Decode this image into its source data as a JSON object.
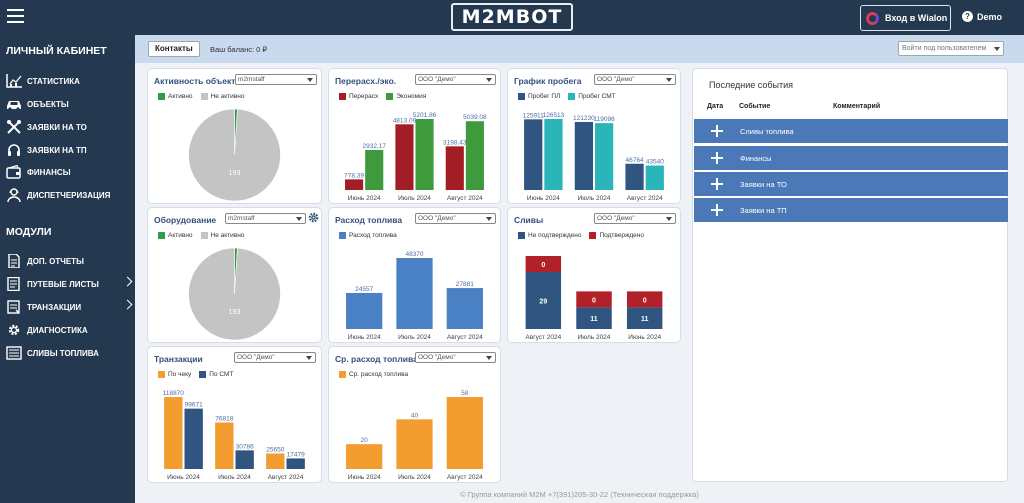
{
  "header": {
    "logo": "M2MBOT",
    "wialon_label": "Вход в Wialon",
    "user": "Demo"
  },
  "sidebar": {
    "cabinet_title": "ЛИЧНЫЙ КАБИНЕТ",
    "cabinet_items": [
      {
        "label": "СТАТИСТИКА"
      },
      {
        "label": "ОБЪЕКТЫ"
      },
      {
        "label": "ЗАЯВКИ НА ТО"
      },
      {
        "label": "ЗАЯВКИ НА ТП"
      },
      {
        "label": "ФИНАНСЫ"
      },
      {
        "label": "ДИСПЕТЧЕРИЗАЦИЯ"
      }
    ],
    "modules_title": "МОДУЛИ",
    "module_items": [
      {
        "label": "ДОП. ОТЧЕТЫ"
      },
      {
        "label": "ПУТЕВЫЕ ЛИСТЫ"
      },
      {
        "label": "ТРАНЗАКЦИИ"
      },
      {
        "label": "ДИАГНОСТИКА"
      },
      {
        "label": "СЛИВЫ ТОПЛИВА"
      }
    ]
  },
  "infobar": {
    "contacts_label": "Контакты",
    "balance": "Ваш баланс: 0 ₽",
    "login_as_placeholder": "Войти под пользователем"
  },
  "colors": {
    "active": "#2e9e4a",
    "inactive": "#c4c4c4",
    "overspend": "#a31d24",
    "economy": "#3e9a3d",
    "dark_blue": "#2f5580",
    "teal": "#2ab5b8",
    "fuel_blue": "#4a80c4",
    "orange": "#f39c2f",
    "red": "#b0212a"
  },
  "chart_data": [
    {
      "id": "activity",
      "type": "pie",
      "title": "Активность объекто",
      "select": "m2mstaff",
      "legend": [
        "Активно",
        "Не активно"
      ],
      "values": [
        2,
        193
      ],
      "labels": [
        "",
        "193"
      ]
    },
    {
      "id": "overspend",
      "type": "bar",
      "title": "Перерасх./эко.",
      "select": "ООО \"Демо\"",
      "categories": [
        "Июнь 2024",
        "Июль 2024",
        "Август 2024"
      ],
      "series": [
        {
          "name": "Перерасх",
          "values": [
            778.39,
            4813.09,
            3198.43
          ],
          "labels": [
            "778.39",
            "4813.09",
            "3198.43"
          ]
        },
        {
          "name": "Экономия",
          "values": [
            2932.17,
            5201.86,
            5039.08
          ],
          "labels": [
            "2932.17",
            "5201.86",
            "5039.08"
          ]
        }
      ]
    },
    {
      "id": "mileage",
      "type": "bar",
      "title": "График пробега",
      "select": "ООО \"Демо\"",
      "categories": [
        "Июнь 2024",
        "Июль 2024",
        "Август 2024"
      ],
      "series": [
        {
          "name": "Пробег ПЛ",
          "values": [
            125911,
            121230,
            46764
          ],
          "labels": [
            "125911",
            "121230",
            "46764"
          ]
        },
        {
          "name": "Пробег СМТ",
          "values": [
            126513,
            119096,
            43540
          ],
          "labels": [
            "126513",
            "119096",
            "43540"
          ]
        }
      ]
    },
    {
      "id": "equipment",
      "type": "pie",
      "title": "Оборудование",
      "select": "m2mstaff",
      "legend": [
        "Активно",
        "Не активно"
      ],
      "values": [
        2,
        193
      ],
      "labels": [
        "",
        "193"
      ]
    },
    {
      "id": "fuel",
      "type": "bar",
      "title": "Расход топлива",
      "select": "ООО \"Демо\"",
      "categories": [
        "Июнь 2024",
        "Июль 2024",
        "Август 2024"
      ],
      "series": [
        {
          "name": "Расход топлива",
          "values": [
            24557,
            48370,
            27881
          ],
          "labels": [
            "24557",
            "48370",
            "27881"
          ]
        }
      ]
    },
    {
      "id": "drains",
      "type": "stacked-bar",
      "title": "Сливы",
      "select": "ООО \"Демо\"",
      "categories": [
        "Август 2024",
        "Июль 2024",
        "Июнь 2024"
      ],
      "series": [
        {
          "name": "Не подтверждено",
          "values": [
            29,
            11,
            11
          ],
          "labels": [
            "29",
            "11",
            "11"
          ]
        },
        {
          "name": "Подтверждено",
          "values": [
            0,
            0,
            0
          ],
          "labels": [
            "0",
            "0",
            "0"
          ]
        }
      ]
    },
    {
      "id": "transactions",
      "type": "bar",
      "title": "Транзакции",
      "select": "ООО \"Демо\"",
      "categories": [
        "Июнь 2024",
        "Июль 2024",
        "Август 2024"
      ],
      "series": [
        {
          "name": "По чеку",
          "values": [
            118870,
            76818,
            25650
          ],
          "labels": [
            "118870",
            "76818",
            "25650"
          ]
        },
        {
          "name": "По СМТ",
          "values": [
            99671,
            30786,
            17479
          ],
          "labels": [
            "99671",
            "30786",
            "17479"
          ]
        }
      ]
    },
    {
      "id": "avgfuel",
      "type": "bar",
      "title": "Ср. расход топлива",
      "select": "ООО \"Демо\"",
      "categories": [
        "Июнь 2024",
        "Июль 2024",
        "Август 2024"
      ],
      "series": [
        {
          "name": "Ср. расход топлива",
          "values": [
            20,
            40,
            58
          ],
          "labels": [
            "20",
            "40",
            "58"
          ]
        }
      ]
    }
  ],
  "events": {
    "title": "Последние события",
    "columns": [
      "Дата",
      "Событие",
      "Комментарий"
    ],
    "rows": [
      {
        "label": "Сливы топлива"
      },
      {
        "label": "Финансы"
      },
      {
        "label": "Заявки на ТО"
      },
      {
        "label": "Заявки на ТП"
      }
    ]
  },
  "footer": "© Группа компаний М2М +7(391)205-30-22 (Техническая поддержка)"
}
